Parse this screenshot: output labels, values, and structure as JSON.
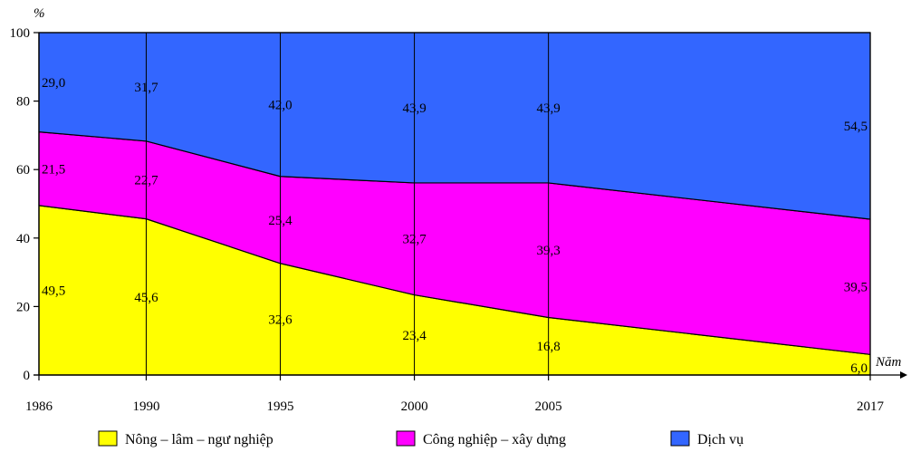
{
  "chart_data": {
    "type": "area",
    "stacked": true,
    "y_unit": "%",
    "x_unit": "Năm",
    "x": [
      1986,
      1990,
      1995,
      2000,
      2005,
      2017
    ],
    "x_tick_labels": [
      "1986",
      "1990",
      "1995",
      "2000",
      "2005",
      "2017"
    ],
    "ylim": [
      0,
      100
    ],
    "y_ticks": [
      0,
      20,
      40,
      60,
      80,
      100
    ],
    "y_tick_labels": [
      "0",
      "20",
      "40",
      "60",
      "80",
      "100"
    ],
    "series": [
      {
        "name": "Nông – lâm – ngư nghiệp",
        "color": "#ffff00",
        "values": [
          49.5,
          45.6,
          32.6,
          23.4,
          16.8,
          6.0
        ],
        "labels": [
          "49,5",
          "45,6",
          "32,6",
          "23,4",
          "16,8",
          "6,0"
        ]
      },
      {
        "name": "Công nghiệp – xây dựng",
        "color": "#ff00ff",
        "values": [
          21.5,
          22.7,
          25.4,
          32.7,
          39.3,
          39.5
        ],
        "labels": [
          "21,5",
          "22,7",
          "25,4",
          "32,7",
          "39,3",
          "39,5"
        ]
      },
      {
        "name": "Dịch vụ",
        "color": "#3366ff",
        "values": [
          29.0,
          31.7,
          42.0,
          43.9,
          43.9,
          54.5
        ],
        "labels": [
          "29,0",
          "31,7",
          "42,0",
          "43,9",
          "43,9",
          "54,5"
        ]
      }
    ],
    "grid": false,
    "legend_position": "bottom"
  }
}
